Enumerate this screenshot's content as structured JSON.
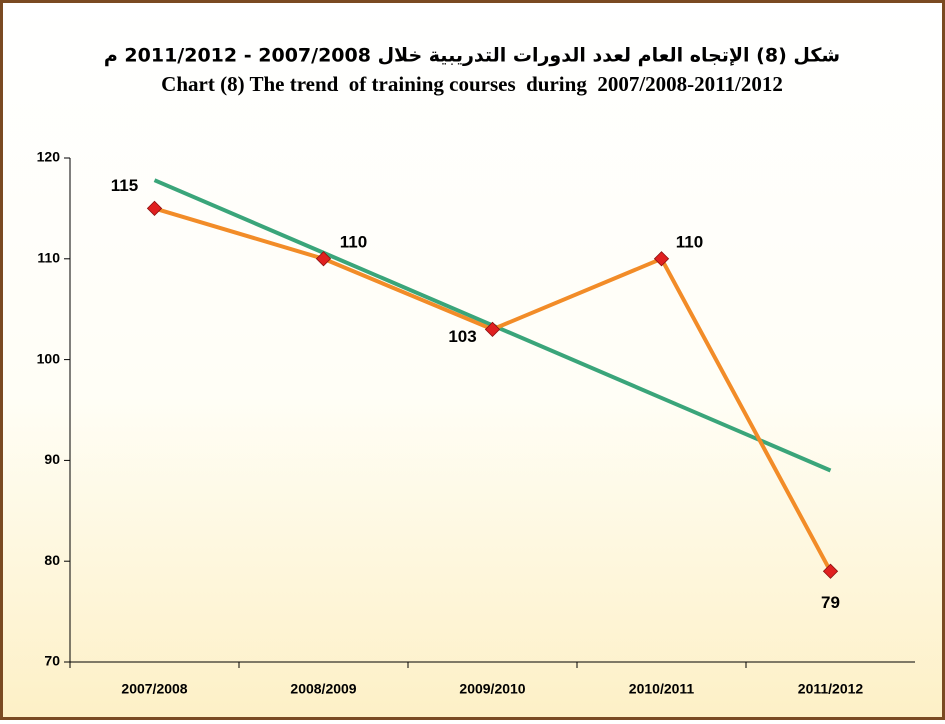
{
  "chart_data": {
    "type": "line",
    "title_ar": "شكل (8) الإتجاه العام لعدد الدورات التدريبية خلال 2007/2008 - 2011/2012 م",
    "title": "Chart (8) The trend  of training courses  during  2007/2008-2011/2012",
    "categories": [
      "2007/2008",
      "2008/2009",
      "2009/2010",
      "2010/2011",
      "2011/2012"
    ],
    "values": [
      115,
      110,
      103,
      110,
      79
    ],
    "color": "#f28c28",
    "marker_color": "#e02020",
    "trend_values": [
      117.8,
      110.6,
      103.4,
      96.2,
      89.0
    ],
    "trend_color": "#3aa57a",
    "ylim": [
      70,
      120
    ],
    "yticks": [
      70,
      80,
      90,
      100,
      110,
      120
    ],
    "grid": false
  }
}
